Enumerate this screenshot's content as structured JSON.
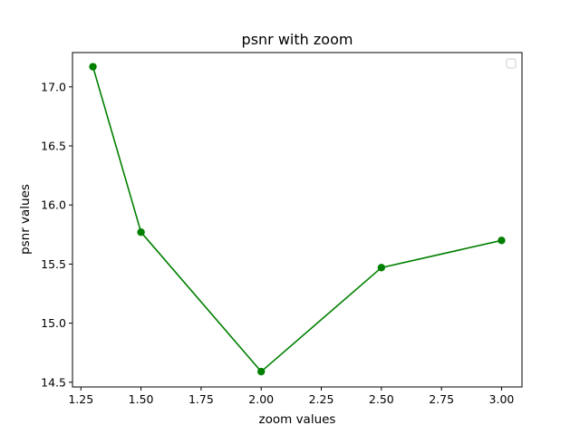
{
  "chart_data": {
    "type": "line",
    "title": "psnr with zoom",
    "xlabel": "zoom values",
    "ylabel": "psnr values",
    "xlim": [
      1.215,
      3.085
    ],
    "ylim": [
      14.46,
      17.29
    ],
    "xticks": [
      1.25,
      1.5,
      1.75,
      2.0,
      2.25,
      2.5,
      2.75,
      3.0
    ],
    "xtick_labels": [
      "1.25",
      "1.50",
      "1.75",
      "2.00",
      "2.25",
      "2.50",
      "2.75",
      "3.00"
    ],
    "yticks": [
      14.5,
      15.0,
      15.5,
      16.0,
      16.5,
      17.0
    ],
    "ytick_labels": [
      "14.5",
      "15.0",
      "15.5",
      "16.0",
      "16.5",
      "17.0"
    ],
    "grid": false,
    "legend": {
      "position": "top-right",
      "entries": []
    },
    "series": [
      {
        "color": "#008000",
        "marker": "circle",
        "x": [
          1.3,
          1.5,
          2.0,
          2.5,
          3.0
        ],
        "y": [
          17.17,
          15.77,
          14.59,
          15.47,
          15.7
        ]
      }
    ]
  }
}
